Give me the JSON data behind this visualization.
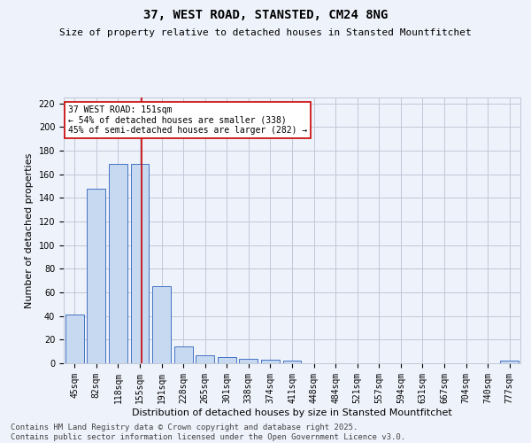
{
  "title": "37, WEST ROAD, STANSTED, CM24 8NG",
  "subtitle": "Size of property relative to detached houses in Stansted Mountfitchet",
  "xlabel": "Distribution of detached houses by size in Stansted Mountfitchet",
  "ylabel": "Number of detached properties",
  "footer1": "Contains HM Land Registry data © Crown copyright and database right 2025.",
  "footer2": "Contains public sector information licensed under the Open Government Licence v3.0.",
  "categories": [
    "45sqm",
    "82sqm",
    "118sqm",
    "155sqm",
    "191sqm",
    "228sqm",
    "265sqm",
    "301sqm",
    "338sqm",
    "374sqm",
    "411sqm",
    "448sqm",
    "484sqm",
    "521sqm",
    "557sqm",
    "594sqm",
    "631sqm",
    "667sqm",
    "704sqm",
    "740sqm",
    "777sqm"
  ],
  "values": [
    41,
    148,
    169,
    169,
    65,
    14,
    7,
    5,
    4,
    3,
    2,
    0,
    0,
    0,
    0,
    0,
    0,
    0,
    0,
    0,
    2
  ],
  "bar_color": "#c6d9f0",
  "bar_edge_color": "#4472c4",
  "grid_color": "#c0c8d8",
  "background_color": "#eef2fa",
  "vline_x": 3.08,
  "vline_color": "#cc0000",
  "annotation_text": "37 WEST ROAD: 151sqm\n← 54% of detached houses are smaller (338)\n45% of semi-detached houses are larger (282) →",
  "annotation_box_color": "#ffffff",
  "annotation_box_edge": "#cc0000",
  "ylim": [
    0,
    225
  ],
  "yticks": [
    0,
    20,
    40,
    60,
    80,
    100,
    120,
    140,
    160,
    180,
    200,
    220
  ],
  "title_fontsize": 10,
  "subtitle_fontsize": 8,
  "xlabel_fontsize": 8,
  "ylabel_fontsize": 8,
  "tick_fontsize": 7,
  "footer_fontsize": 6.5,
  "annot_fontsize": 7
}
